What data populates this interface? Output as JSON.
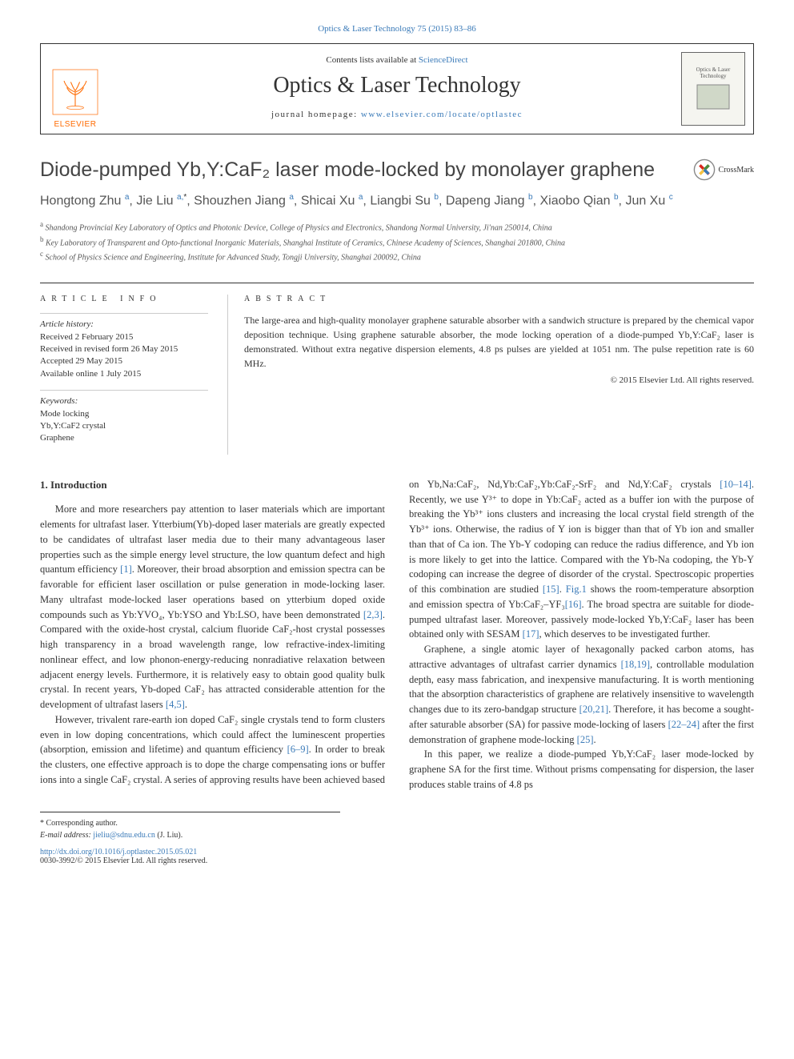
{
  "top_citation": "Optics & Laser Technology 75 (2015) 83–86",
  "header": {
    "contents_prefix": "Contents lists available at ",
    "contents_link": "ScienceDirect",
    "journal_name": "Optics & Laser Technology",
    "homepage_prefix": "journal homepage: ",
    "homepage_url": "www.elsevier.com/locate/optlastec",
    "elsevier_label": "ELSEVIER",
    "cover_label": "Optics & Laser Technology"
  },
  "crossmark_label": "CrossMark",
  "title": "Diode-pumped Yb,Y:CaF₂ laser mode-locked by monolayer graphene",
  "authors_html": "Hongtong Zhu|a|, Jie Liu|a,*|, Shouzhen Jiang|a|, Shicai Xu|a|, Liangbi Su|b|, Dapeng Jiang|b|, Xiaobo Qian|b|, Jun Xu|c|",
  "authors": [
    {
      "name": "Hongtong Zhu",
      "sup": "a"
    },
    {
      "name": "Jie Liu",
      "sup": "a,*"
    },
    {
      "name": "Shouzhen Jiang",
      "sup": "a"
    },
    {
      "name": "Shicai Xu",
      "sup": "a"
    },
    {
      "name": "Liangbi Su",
      "sup": "b"
    },
    {
      "name": "Dapeng Jiang",
      "sup": "b"
    },
    {
      "name": "Xiaobo Qian",
      "sup": "b"
    },
    {
      "name": "Jun Xu",
      "sup": "c"
    }
  ],
  "affiliations": [
    {
      "key": "a",
      "text": "Shandong Provincial Key Laboratory of Optics and Photonic Device, College of Physics and Electronics, Shandong Normal University, Ji'nan 250014, China"
    },
    {
      "key": "b",
      "text": "Key Laboratory of Transparent and Opto-functional Inorganic Materials, Shanghai Institute of Ceramics, Chinese Academy of Sciences, Shanghai 201800, China"
    },
    {
      "key": "c",
      "text": "School of Physics Science and Engineering, Institute for Advanced Study, Tongji University, Shanghai 200092, China"
    }
  ],
  "info": {
    "label": "ARTICLE INFO",
    "history_label": "Article history:",
    "history": [
      "Received 2 February 2015",
      "Received in revised form 26 May 2015",
      "Accepted 29 May 2015",
      "Available online 1 July 2015"
    ],
    "keywords_label": "Keywords:",
    "keywords": [
      "Mode locking",
      "Yb,Y:CaF2 crystal",
      "Graphene"
    ]
  },
  "abstract": {
    "label": "ABSTRACT",
    "text": "The large-area and high-quality monolayer graphene saturable absorber with a sandwich structure is prepared by the chemical vapor deposition technique. Using graphene saturable absorber, the mode locking operation of a diode-pumped Yb,Y:CaF₂ laser is demonstrated. Without extra negative dispersion elements, 4.8 ps pulses are yielded at 1051 nm. The pulse repetition rate is 60 MHz.",
    "copyright": "© 2015 Elsevier Ltd. All rights reserved."
  },
  "body": {
    "h_intro": "1.  Introduction",
    "p1a": "More and more researchers pay attention to laser materials which are important elements for ultrafast laser. Ytterbium(Yb)-doped laser materials are greatly expected to be candidates of ultrafast laser media due to their many advantageous laser properties such as the simple energy level structure, the low quantum defect and high quantum efficiency ",
    "r1": "[1]",
    "p1b": ". Moreover, their broad absorption and emission spectra can be favorable for efficient laser oscillation or pulse generation in mode-locking laser. Many ultrafast mode-locked laser operations based on ytterbium doped oxide compounds such as Yb:YVO₄, Yb:YSO and Yb:LSO, have been demonstrated ",
    "r23": "[2,3]",
    "p1c": ". Compared with the oxide-host crystal, calcium fluoride CaF₂-host crystal possesses high transparency in a broad wavelength range, low refractive-index-limiting nonlinear effect, and low phonon-energy-reducing nonradiative relaxation between adjacent energy levels. Furthermore, it is relatively easy to obtain good quality bulk crystal. In recent years, Yb-doped CaF₂ has attracted considerable attention for the development of ultrafast lasers ",
    "r45": "[4,5]",
    "p1d": ".",
    "p2a": "However, trivalent rare-earth ion doped CaF₂ single crystals tend to form clusters even in low doping concentrations, which could affect the luminescent properties (absorption, emission and lifetime) and quantum efficiency ",
    "r69": "[6–9]",
    "p2b": ". In order to break the clusters, one effective approach is to dope the charge ",
    "p3a": "compensating ions or buffer ions into a single CaF₂ crystal. A series of approving results have been achieved based on Yb,Na:CaF₂, Nd,Yb:CaF₂,Yb:CaF₂-SrF₂ and Nd,Y:CaF₂ crystals ",
    "r1014": "[10–14]",
    "p3b": ". Recently, we use Y³⁺ to dope in Yb:CaF₂ acted as a buffer ion with the purpose of breaking the Yb³⁺ ions clusters and increasing the local crystal field strength of the Yb³⁺ ions. Otherwise, the radius of Y ion is bigger than that of Yb ion and smaller than that of Ca ion. The Yb-Y codoping can reduce the radius difference, and Yb ion is more likely to get into the lattice. Compared with the Yb-Na codoping, the Yb-Y codoping can increase the degree of disorder of the crystal. Spectroscopic properties of this combination are studied ",
    "r15": "[15]",
    "p3c": ". ",
    "fig1": "Fig.1",
    "p3d": " shows the room-temperature absorption and emission spectra of Yb:CaF₂–YF₃",
    "r16": "[16]",
    "p3e": ". The broad spectra are suitable for diode-pumped ultrafast laser. Moreover, passively mode-locked Yb,Y:CaF₂ laser has been obtained only with SESAM ",
    "r17": "[17]",
    "p3f": ", which deserves to be investigated further.",
    "p4a": "Graphene, a single atomic layer of hexagonally packed carbon atoms, has attractive advantages of ultrafast carrier dynamics ",
    "r1819": "[18,19]",
    "p4b": ", controllable modulation depth, easy mass fabrication, and inexpensive manufacturing. It is worth mentioning that the absorption characteristics of graphene are relatively insensitive to wavelength changes due to its zero-bandgap structure ",
    "r2021": "[20,21]",
    "p4c": ". Therefore, it has become a sought-after saturable absorber (SA) for passive mode-locking of lasers ",
    "r2224": "[22–24]",
    "p4d": " after the first demonstration of graphene mode-locking ",
    "r25": "[25]",
    "p4e": ".",
    "p5": "In this paper, we realize a diode-pumped Yb,Y:CaF₂ laser mode-locked by graphene SA for the first time. Without prisms compensating for dispersion, the laser produces stable trains of 4.8 ps"
  },
  "footer": {
    "corr_label": "* Corresponding author.",
    "email_label": "E-mail address: ",
    "email": "jieliu@sdnu.edu.cn",
    "email_suffix": " (J. Liu).",
    "doi": "http://dx.doi.org/10.1016/j.optlastec.2015.05.021",
    "issn_line": "0030-3992/© 2015 Elsevier Ltd. All rights reserved."
  },
  "colors": {
    "link": "#3a7ab8",
    "elsevier_orange": "#ff6a00",
    "text": "#333333",
    "rule": "#333333",
    "light_rule": "#cccccc"
  },
  "typography": {
    "body_pt": 12.5,
    "title_pt": 25,
    "journal_pt": 28,
    "authors_pt": 16,
    "small_pt": 11,
    "tiny_pt": 10
  }
}
